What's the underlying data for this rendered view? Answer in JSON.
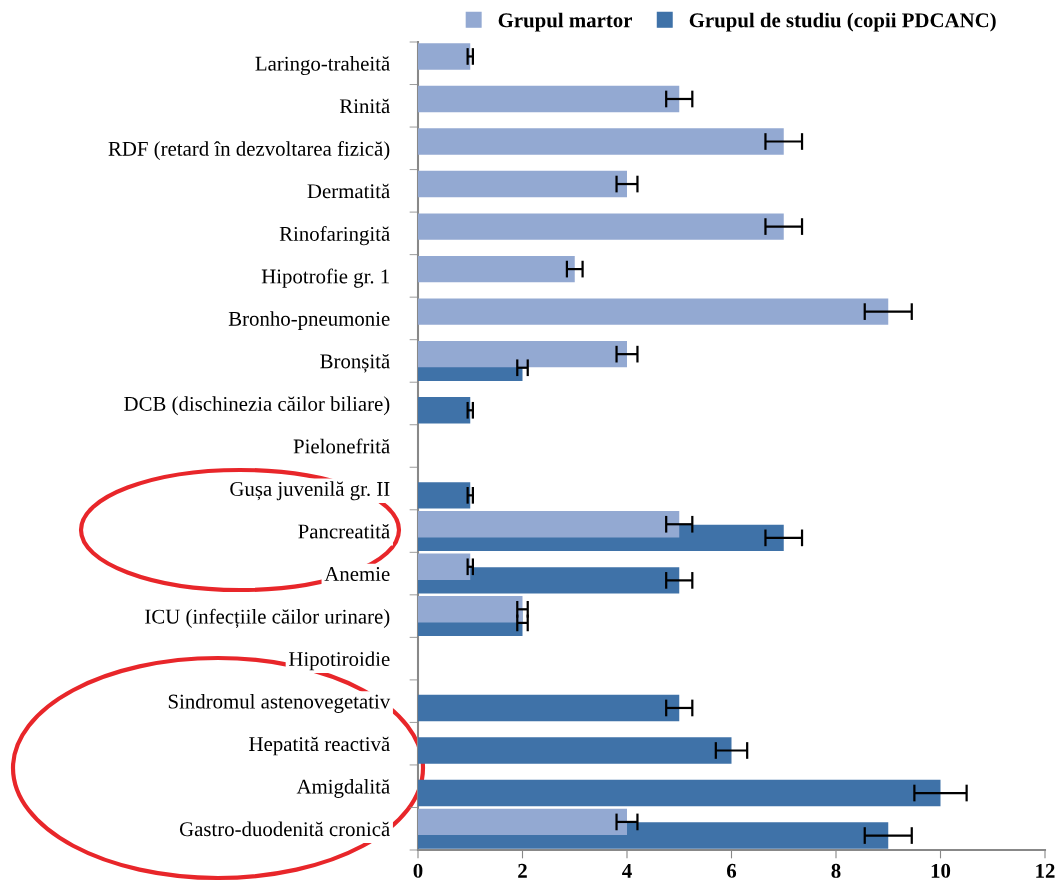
{
  "chart_data": {
    "type": "bar",
    "orientation": "horizontal",
    "categories": [
      "Laringo-traheită",
      "Rinită",
      "RDF (retard în dezvoltarea fizică)",
      "Dermatită",
      "Rinofaringită",
      "Hipotrofie gr. 1",
      "Bronho-pneumonie",
      "Bronșită",
      "DCB (dischinezia căilor biliare)",
      "Pielonefrită",
      "Gușa juvenilă gr. II",
      "Pancreatită",
      "Anemie",
      "ICU (infecțiile căilor urinare)",
      "Hipotiroidie",
      "Sindromul astenovegetativ",
      "Hepatită reactivă",
      "Amigdalită",
      "Gastro-duodenită cronică"
    ],
    "series": [
      {
        "name": "Grupul martor",
        "color": "#93a9d2",
        "values": [
          1,
          5,
          7,
          4,
          7,
          3,
          9,
          4,
          null,
          null,
          null,
          5,
          1,
          2,
          null,
          null,
          null,
          null,
          4
        ],
        "errors": [
          0.05,
          0.25,
          0.35,
          0.2,
          0.35,
          0.15,
          0.45,
          0.2,
          null,
          null,
          null,
          0.25,
          0.05,
          0.1,
          null,
          null,
          null,
          null,
          0.2
        ]
      },
      {
        "name": "Grupul de studiu (copii PDCANC)",
        "color": "#3f72a8",
        "values": [
          null,
          null,
          null,
          null,
          null,
          null,
          null,
          2,
          1,
          null,
          1,
          7,
          5,
          2,
          null,
          5,
          6,
          10,
          9
        ],
        "errors": [
          null,
          null,
          null,
          null,
          null,
          null,
          null,
          0.1,
          0.05,
          null,
          0.05,
          0.35,
          0.25,
          0.1,
          null,
          0.25,
          0.3,
          0.5,
          0.45
        ]
      }
    ],
    "xlim": [
      0,
      12
    ],
    "xticks": [
      0,
      2,
      4,
      6,
      8,
      10,
      12
    ],
    "grid": false,
    "legend": "top"
  }
}
